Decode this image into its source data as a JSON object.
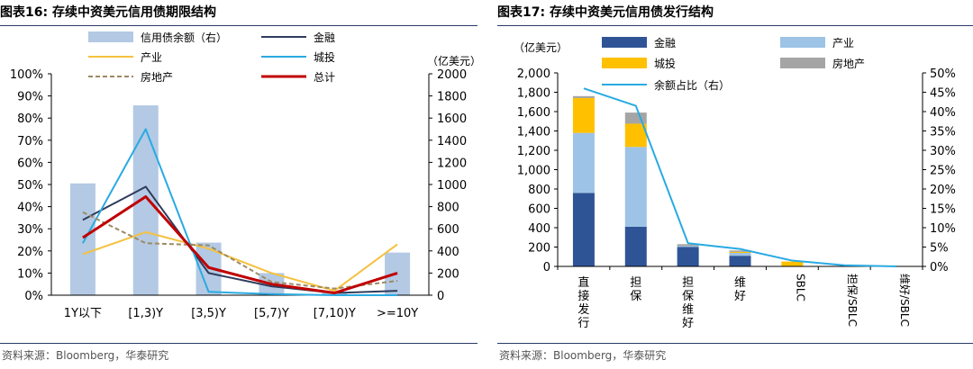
{
  "left_panel": {
    "title": "图表16:  存续中资美元信用债期限结构",
    "source": "资料来源：Bloomberg，华泰研究"
  },
  "right_panel": {
    "title": "图表17:  存续中资美元信用债发行结构",
    "source": "资料来源：Bloomberg，华泰研究"
  },
  "colors": {
    "balance_bar": "#b3c9e4",
    "finance": "#2e3c5c",
    "industry": "#f5c13e",
    "chengtou": "#29aae2",
    "realestate": "#9c8a62",
    "total": "#c00000",
    "stack_finance": "#2f5496",
    "stack_industry": "#9dc3e6",
    "stack_chengtou": "#ffc000",
    "stack_realestate": "#a5a5a5",
    "share_line": "#29aae2",
    "title_rule": "#2a3a66"
  },
  "chart_data": [
    {
      "type": "bar+line",
      "title": "存续中资美元信用债期限结构",
      "categories": [
        "1Y以下",
        "[1,3)Y",
        "[3,5)Y",
        "[5,7)Y",
        "[7,10)Y",
        ">=10Y"
      ],
      "y_left": {
        "range": [
          0,
          100
        ],
        "ticks": [
          "0%",
          "10%",
          "20%",
          "30%",
          "40%",
          "50%",
          "60%",
          "70%",
          "80%",
          "90%",
          "100%"
        ]
      },
      "y_right": {
        "label": "（亿美元）",
        "range": [
          0,
          2000
        ],
        "ticks": [
          "0",
          "200",
          "400",
          "600",
          "800",
          "1000",
          "1200",
          "1400",
          "1600",
          "1800",
          "2000"
        ]
      },
      "bar_series": {
        "name": "信用债余额（右）",
        "axis": "right",
        "values": [
          1010,
          1715,
          475,
          200,
          30,
          385
        ]
      },
      "line_series": [
        {
          "name": "金融",
          "key": "finance",
          "dash": false,
          "width": 2,
          "values": [
            34,
            49,
            10,
            4,
            1,
            2
          ]
        },
        {
          "name": "产业",
          "key": "industry",
          "dash": false,
          "width": 2,
          "values": [
            18.5,
            28.5,
            21,
            10,
            2,
            23
          ]
        },
        {
          "name": "城投",
          "key": "chengtou",
          "dash": false,
          "width": 2,
          "values": [
            23.5,
            75,
            1.5,
            0.5,
            0,
            0
          ]
        },
        {
          "name": "房地产",
          "key": "realestate",
          "dash": true,
          "width": 2,
          "values": [
            37.5,
            23.5,
            22.5,
            6,
            3,
            6.5
          ]
        },
        {
          "name": "总计",
          "key": "total",
          "dash": false,
          "width": 3,
          "values": [
            26,
            44.5,
            12.5,
            5,
            1,
            10
          ]
        }
      ]
    },
    {
      "type": "stacked_bar+line",
      "title": "存续中资美元信用债发行结构",
      "categories": [
        "直接发行",
        "担保",
        "担保维好",
        "维好",
        "SBLC",
        "担保/SBLC",
        "维好/SBLC"
      ],
      "y_left": {
        "label": "（亿美元）",
        "range": [
          0,
          2000
        ],
        "ticks": [
          "0",
          "200",
          "400",
          "600",
          "800",
          "1,000",
          "1,200",
          "1,400",
          "1,600",
          "1,800",
          "2,000"
        ]
      },
      "y_right": {
        "range": [
          0,
          50
        ],
        "ticks": [
          "0%",
          "5%",
          "10%",
          "15%",
          "20%",
          "25%",
          "30%",
          "35%",
          "40%",
          "45%",
          "50%"
        ]
      },
      "stack_series": [
        {
          "name": "金融",
          "key": "stack_finance",
          "values": [
            760,
            410,
            200,
            110,
            0,
            0,
            0
          ]
        },
        {
          "name": "产业",
          "key": "stack_industry",
          "values": [
            620,
            825,
            10,
            30,
            5,
            0,
            0
          ]
        },
        {
          "name": "城投",
          "key": "stack_chengtou",
          "values": [
            360,
            240,
            0,
            10,
            45,
            0,
            0
          ]
        },
        {
          "name": "房地产",
          "key": "stack_realestate",
          "values": [
            20,
            115,
            20,
            15,
            0,
            0,
            0
          ]
        }
      ],
      "line_series": {
        "name": "余额占比（右）",
        "key": "share_line",
        "axis": "right",
        "values": [
          46,
          41.5,
          6,
          4.5,
          1.5,
          0.3,
          0
        ]
      }
    }
  ]
}
